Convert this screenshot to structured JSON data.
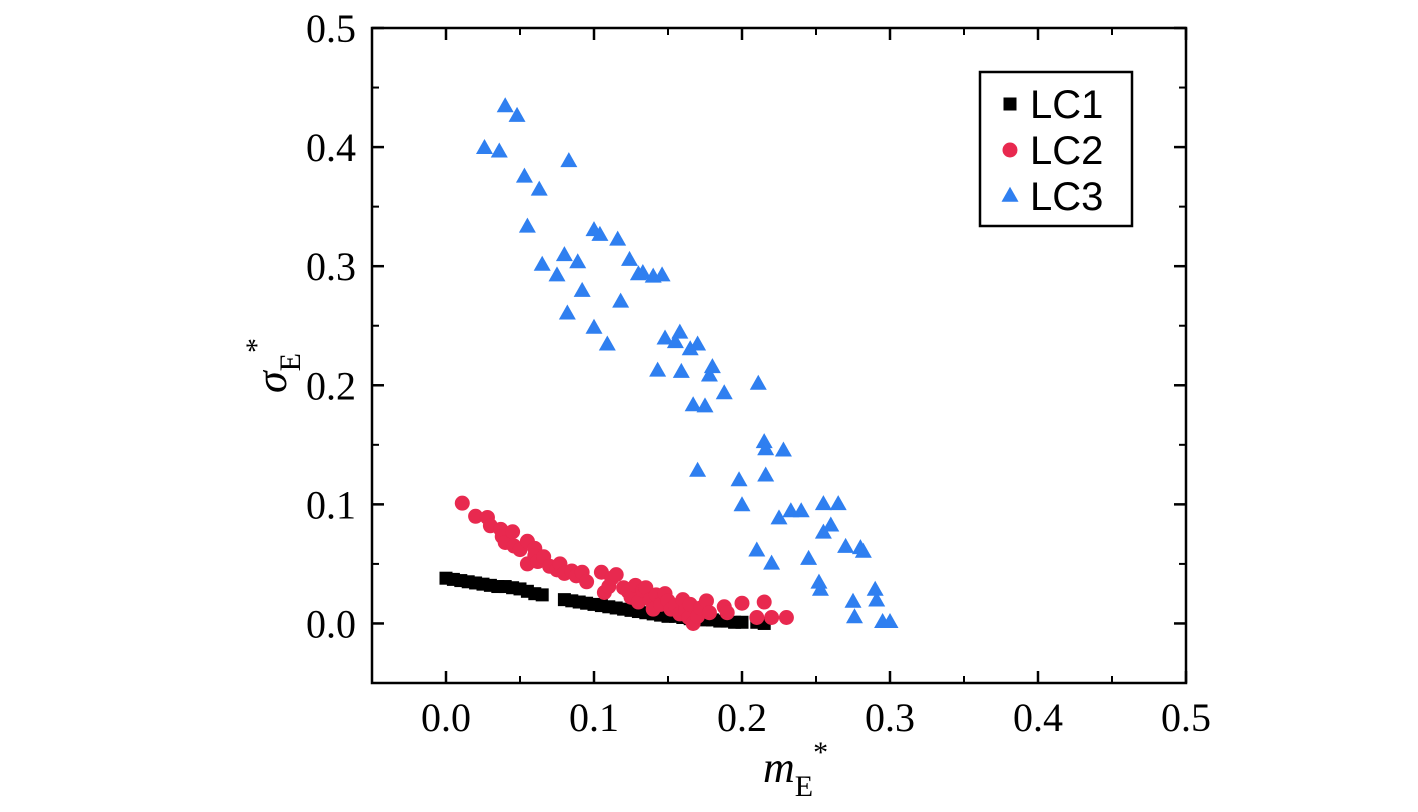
{
  "chart_data": {
    "type": "scatter",
    "title": "",
    "xlabel": {
      "main": "m",
      "sub": "E",
      "sup": "*"
    },
    "ylabel": {
      "main": "σ",
      "sub": "E",
      "sup": "*"
    },
    "xlim": [
      -0.05,
      0.5
    ],
    "ylim": [
      -0.05,
      0.5
    ],
    "xticks": [
      "0.0",
      "0.1",
      "0.2",
      "0.3",
      "0.4",
      "0.5"
    ],
    "yticks": [
      "0.0",
      "0.1",
      "0.2",
      "0.3",
      "0.4",
      "0.5"
    ],
    "grid": false,
    "legend_position": "top-right",
    "series": [
      {
        "name": "LC1",
        "marker": "square",
        "color": "#000000",
        "points": [
          [
            0.0,
            0.038
          ],
          [
            0.005,
            0.037
          ],
          [
            0.01,
            0.036
          ],
          [
            0.015,
            0.035
          ],
          [
            0.02,
            0.034
          ],
          [
            0.025,
            0.033
          ],
          [
            0.03,
            0.032
          ],
          [
            0.035,
            0.031
          ],
          [
            0.04,
            0.031
          ],
          [
            0.045,
            0.03
          ],
          [
            0.05,
            0.029
          ],
          [
            0.055,
            0.027
          ],
          [
            0.06,
            0.025
          ],
          [
            0.065,
            0.024
          ],
          [
            0.08,
            0.02
          ],
          [
            0.085,
            0.019
          ],
          [
            0.09,
            0.018
          ],
          [
            0.095,
            0.017
          ],
          [
            0.1,
            0.016
          ],
          [
            0.105,
            0.015
          ],
          [
            0.11,
            0.014
          ],
          [
            0.115,
            0.013
          ],
          [
            0.12,
            0.012
          ],
          [
            0.125,
            0.011
          ],
          [
            0.13,
            0.01
          ],
          [
            0.135,
            0.009
          ],
          [
            0.14,
            0.008
          ],
          [
            0.145,
            0.007
          ],
          [
            0.15,
            0.006
          ],
          [
            0.155,
            0.006
          ],
          [
            0.16,
            0.005
          ],
          [
            0.165,
            0.004
          ],
          [
            0.17,
            0.004
          ],
          [
            0.175,
            0.003
          ],
          [
            0.18,
            0.003
          ],
          [
            0.185,
            0.002
          ],
          [
            0.19,
            0.002
          ],
          [
            0.195,
            0.001
          ],
          [
            0.2,
            0.001
          ],
          [
            0.21,
            0.001
          ],
          [
            0.215,
            0.0
          ]
        ]
      },
      {
        "name": "LC2",
        "marker": "circle",
        "color": "#e8294f",
        "points": [
          [
            0.011,
            0.101
          ],
          [
            0.02,
            0.09
          ],
          [
            0.028,
            0.089
          ],
          [
            0.03,
            0.082
          ],
          [
            0.037,
            0.079
          ],
          [
            0.038,
            0.073
          ],
          [
            0.04,
            0.068
          ],
          [
            0.045,
            0.077
          ],
          [
            0.046,
            0.065
          ],
          [
            0.05,
            0.062
          ],
          [
            0.055,
            0.069
          ],
          [
            0.055,
            0.05
          ],
          [
            0.06,
            0.063
          ],
          [
            0.06,
            0.057
          ],
          [
            0.062,
            0.052
          ],
          [
            0.066,
            0.056
          ],
          [
            0.07,
            0.048
          ],
          [
            0.075,
            0.045
          ],
          [
            0.077,
            0.05
          ],
          [
            0.08,
            0.042
          ],
          [
            0.085,
            0.044
          ],
          [
            0.088,
            0.04
          ],
          [
            0.092,
            0.043
          ],
          [
            0.095,
            0.035
          ],
          [
            0.105,
            0.043
          ],
          [
            0.107,
            0.026
          ],
          [
            0.11,
            0.031
          ],
          [
            0.112,
            0.038
          ],
          [
            0.115,
            0.041
          ],
          [
            0.12,
            0.03
          ],
          [
            0.123,
            0.027
          ],
          [
            0.125,
            0.022
          ],
          [
            0.128,
            0.032
          ],
          [
            0.13,
            0.018
          ],
          [
            0.133,
            0.028
          ],
          [
            0.135,
            0.03
          ],
          [
            0.138,
            0.02
          ],
          [
            0.14,
            0.012
          ],
          [
            0.142,
            0.024
          ],
          [
            0.145,
            0.016
          ],
          [
            0.148,
            0.025
          ],
          [
            0.15,
            0.019
          ],
          [
            0.152,
            0.012
          ],
          [
            0.155,
            0.015
          ],
          [
            0.158,
            0.008
          ],
          [
            0.16,
            0.02
          ],
          [
            0.162,
            0.011
          ],
          [
            0.164,
            0.005
          ],
          [
            0.165,
            0.016
          ],
          [
            0.167,
            0.0
          ],
          [
            0.17,
            0.006
          ],
          [
            0.172,
            0.013
          ],
          [
            0.176,
            0.019
          ],
          [
            0.178,
            0.009
          ],
          [
            0.188,
            0.014
          ],
          [
            0.19,
            0.009
          ],
          [
            0.2,
            0.017
          ],
          [
            0.21,
            0.005
          ],
          [
            0.215,
            0.018
          ],
          [
            0.22,
            0.005
          ],
          [
            0.23,
            0.005
          ]
        ]
      },
      {
        "name": "LC3",
        "marker": "triangle",
        "color": "#2f7ff0",
        "points": [
          [
            0.026,
            0.399
          ],
          [
            0.036,
            0.396
          ],
          [
            0.04,
            0.434
          ],
          [
            0.048,
            0.426
          ],
          [
            0.053,
            0.375
          ],
          [
            0.055,
            0.333
          ],
          [
            0.063,
            0.364
          ],
          [
            0.065,
            0.301
          ],
          [
            0.075,
            0.292
          ],
          [
            0.08,
            0.309
          ],
          [
            0.082,
            0.26
          ],
          [
            0.083,
            0.388
          ],
          [
            0.089,
            0.303
          ],
          [
            0.092,
            0.279
          ],
          [
            0.1,
            0.248
          ],
          [
            0.1,
            0.33
          ],
          [
            0.104,
            0.326
          ],
          [
            0.109,
            0.234
          ],
          [
            0.116,
            0.322
          ],
          [
            0.118,
            0.27
          ],
          [
            0.124,
            0.305
          ],
          [
            0.13,
            0.293
          ],
          [
            0.133,
            0.294
          ],
          [
            0.14,
            0.291
          ],
          [
            0.143,
            0.212
          ],
          [
            0.146,
            0.292
          ],
          [
            0.148,
            0.239
          ],
          [
            0.155,
            0.236
          ],
          [
            0.158,
            0.244
          ],
          [
            0.159,
            0.211
          ],
          [
            0.165,
            0.23
          ],
          [
            0.167,
            0.183
          ],
          [
            0.17,
            0.234
          ],
          [
            0.17,
            0.128
          ],
          [
            0.175,
            0.182
          ],
          [
            0.178,
            0.208
          ],
          [
            0.18,
            0.215
          ],
          [
            0.188,
            0.193
          ],
          [
            0.198,
            0.12
          ],
          [
            0.2,
            0.099
          ],
          [
            0.21,
            0.061
          ],
          [
            0.211,
            0.201
          ],
          [
            0.215,
            0.152
          ],
          [
            0.216,
            0.146
          ],
          [
            0.216,
            0.124
          ],
          [
            0.22,
            0.05
          ],
          [
            0.225,
            0.088
          ],
          [
            0.228,
            0.145
          ],
          [
            0.233,
            0.094
          ],
          [
            0.24,
            0.094
          ],
          [
            0.245,
            0.054
          ],
          [
            0.252,
            0.034
          ],
          [
            0.253,
            0.028
          ],
          [
            0.255,
            0.1
          ],
          [
            0.255,
            0.076
          ],
          [
            0.26,
            0.082
          ],
          [
            0.265,
            0.1
          ],
          [
            0.27,
            0.064
          ],
          [
            0.275,
            0.018
          ],
          [
            0.276,
            0.005
          ],
          [
            0.28,
            0.063
          ],
          [
            0.282,
            0.06
          ],
          [
            0.29,
            0.028
          ],
          [
            0.291,
            0.019
          ],
          [
            0.295,
            0.001
          ],
          [
            0.3,
            0.001
          ]
        ]
      }
    ]
  }
}
